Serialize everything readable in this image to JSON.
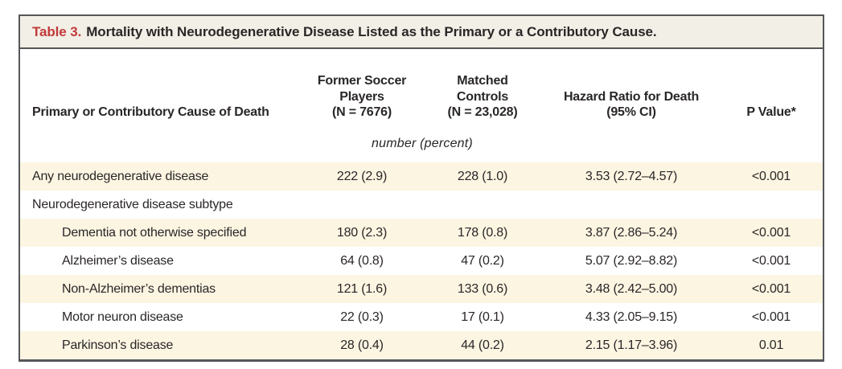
{
  "colors": {
    "accent": "#c13a3a",
    "titlebar-bg": "#f2efe6",
    "shade": "#fcf5e2",
    "frame": "#55565a",
    "text": "#2a2627"
  },
  "table": {
    "title_label": "Table 3.",
    "title_text": "Mortality with Neurodegenerative Disease Listed as the Primary or a Contributory Cause.",
    "headers": {
      "cause": "Primary or Contributory Cause of Death",
      "players": "Former Soccer\nPlayers\n(N = 7676)",
      "controls": "Matched\nControls\n(N = 23,028)",
      "hazard": "Hazard Ratio for Death\n(95% CI)",
      "pvalue": "P Value*"
    },
    "units_note": "number (percent)",
    "rows": [
      {
        "cause": "Any neurodegenerative disease",
        "players": "222 (2.9)",
        "controls": "228 (1.0)",
        "hazard": "3.53 (2.72–4.57)",
        "pvalue": "<0.001"
      },
      {
        "cause": "Neurodegenerative disease subtype",
        "players": "",
        "controls": "",
        "hazard": "",
        "pvalue": ""
      },
      {
        "cause": "Dementia not otherwise specified",
        "players": "180 (2.3)",
        "controls": "178 (0.8)",
        "hazard": "3.87 (2.86–5.24)",
        "pvalue": "<0.001"
      },
      {
        "cause": "Alzheimer’s disease",
        "players": "64 (0.8)",
        "controls": "47 (0.2)",
        "hazard": "5.07 (2.92–8.82)",
        "pvalue": "<0.001"
      },
      {
        "cause": "Non-Alzheimer’s dementias",
        "players": "121 (1.6)",
        "controls": "133 (0.6)",
        "hazard": "3.48 (2.42–5.00)",
        "pvalue": "<0.001"
      },
      {
        "cause": "Motor neuron disease",
        "players": "22 (0.3)",
        "controls": "17 (0.1)",
        "hazard": "4.33 (2.05–9.15)",
        "pvalue": "<0.001"
      },
      {
        "cause": "Parkinson’s disease",
        "players": "28 (0.4)",
        "controls": "44 (0.2)",
        "hazard": "2.15 (1.17–3.96)",
        "pvalue": "0.01"
      }
    ]
  }
}
